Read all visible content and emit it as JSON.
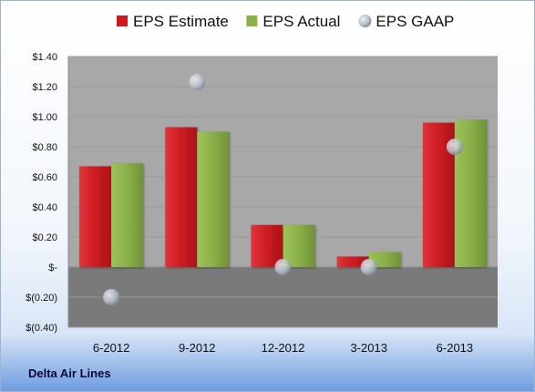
{
  "company": "Delta Air Lines",
  "legend": [
    {
      "label": "EPS Estimate",
      "color": "#cc1c22",
      "shape": "square"
    },
    {
      "label": "EPS Actual",
      "color": "#8bb04a",
      "shape": "square"
    },
    {
      "label": "EPS GAAP",
      "color": "#b9c2cc",
      "shape": "circle"
    }
  ],
  "chart_data": {
    "type": "bar",
    "categories": [
      "6-2012",
      "9-2012",
      "12-2012",
      "3-2013",
      "6-2013"
    ],
    "series": [
      {
        "name": "EPS Estimate",
        "type": "bar",
        "color": "#cc1c22",
        "values": [
          0.67,
          0.93,
          0.28,
          0.07,
          0.96
        ]
      },
      {
        "name": "EPS Actual",
        "type": "bar",
        "color": "#8bb04a",
        "values": [
          0.69,
          0.9,
          0.28,
          0.1,
          0.98
        ]
      },
      {
        "name": "EPS GAAP",
        "type": "scatter",
        "color": "#b9c2cc",
        "values": [
          -0.2,
          1.23,
          0.0,
          0.0,
          0.8
        ]
      }
    ],
    "yticks": [
      {
        "value": 1.4,
        "label": "$1.40"
      },
      {
        "value": 1.2,
        "label": "$1.20"
      },
      {
        "value": 1.0,
        "label": "$1.00"
      },
      {
        "value": 0.8,
        "label": "$0.80"
      },
      {
        "value": 0.6,
        "label": "$0.60"
      },
      {
        "value": 0.4,
        "label": "$0.40"
      },
      {
        "value": 0.2,
        "label": "$0.20"
      },
      {
        "value": 0.0,
        "label": "$-"
      },
      {
        "value": -0.2,
        "label": "$(0.20)"
      },
      {
        "value": -0.4,
        "label": "$(0.40)"
      }
    ],
    "ylim": [
      -0.4,
      1.4
    ],
    "grid": true,
    "legend_position": "top",
    "title": "",
    "xlabel": "",
    "ylabel": ""
  }
}
